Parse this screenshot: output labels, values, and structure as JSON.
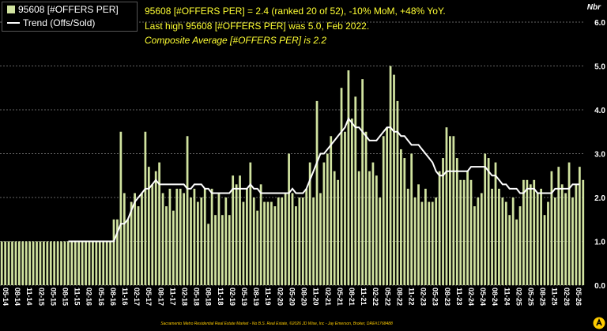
{
  "colors": {
    "bar": "#d1e3a0",
    "trend": "#ffffff",
    "grid": "#c8c8c8",
    "annotation": "#ffff33",
    "background": "#000000"
  },
  "legend": {
    "bars_label": "95608 [#OFFERS PER]",
    "trend_label": "Trend (Offs/Sold)"
  },
  "annotations": [
    "95608 [#OFFERS PER] = 2.4 (ranked 20 of 52), -10% MoM, +48% YoY.",
    "Last high 95608 [#OFFERS PER] was 5.0, Feb 2022.",
    "Composite Average [#OFFERS PER] is 2.2"
  ],
  "unit_label": "Nbr",
  "footer": "Sacramento Metro Residential Real Estate Market - No B.S. Real Estate, ©2026 JD Wise, Inc - Jay Emerson, Broker, DRE#1768488",
  "chart_data": {
    "type": "bar",
    "yaxis_side": "right",
    "ylim": [
      0,
      6
    ],
    "yticks": [
      "0.0",
      "1.0",
      "2.0",
      "3.0",
      "4.0",
      "5.0",
      "6.0"
    ],
    "x_tick_labels": [
      "05-14",
      "08-14",
      "11-14",
      "02-15",
      "05-15",
      "08-15",
      "11-15",
      "02-16",
      "05-16",
      "08-16",
      "11-16",
      "02-17",
      "05-17",
      "08-17",
      "11-17",
      "02-18",
      "05-18",
      "08-18",
      "11-18",
      "02-19",
      "05-19",
      "08-19",
      "11-19",
      "02-20",
      "05-20",
      "08-20",
      "11-20",
      "02-21",
      "05-21",
      "08-21",
      "11-21",
      "02-22",
      "05-22",
      "08-22",
      "11-22",
      "02-23",
      "05-23",
      "08-23",
      "11-23",
      "02-24",
      "05-24",
      "08-24",
      "11-24",
      "02-25",
      "05-25",
      "08-25",
      "11-25",
      "02-26",
      "05-26"
    ],
    "series": [
      {
        "name": "95608 [#OFFERS PER]",
        "type": "bar",
        "values": [
          1.0,
          1.0,
          1.0,
          1.0,
          1.0,
          1.0,
          1.0,
          1.0,
          1.0,
          1.0,
          1.0,
          1.0,
          1.0,
          1.0,
          1.0,
          1.0,
          1.0,
          1.0,
          1.0,
          1.0,
          1.0,
          1.0,
          1.0,
          1.0,
          1.0,
          1.0,
          1.0,
          1.0,
          1.0,
          1.0,
          1.0,
          1.0,
          1.5,
          1.5,
          3.5,
          2.1,
          1.5,
          1.9,
          2.1,
          1.8,
          2.1,
          3.5,
          2.7,
          2.3,
          2.6,
          2.8,
          2.1,
          1.8,
          2.2,
          1.7,
          2.2,
          2.2,
          2.1,
          3.4,
          2.0,
          2.2,
          1.9,
          2.0,
          2.2,
          1.4,
          2.2,
          1.6,
          2.1,
          1.6,
          2.0,
          1.6,
          2.5,
          2.3,
          2.5,
          1.9,
          2.2,
          2.8,
          2.0,
          1.7,
          2.3,
          1.9,
          1.9,
          1.9,
          1.8,
          2.0,
          2.0,
          2.1,
          3.0,
          2.1,
          1.8,
          2.0,
          2.0,
          2.2,
          2.8,
          2.0,
          4.2,
          2.1,
          2.8,
          3.0,
          3.4,
          2.6,
          2.4,
          4.5,
          3.5,
          4.9,
          3.8,
          4.3,
          2.6,
          4.7,
          3.5,
          2.6,
          2.8,
          2.5,
          2.0,
          3.4,
          3.6,
          5.0,
          4.8,
          4.2,
          3.1,
          2.9,
          2.2,
          3.0,
          2.0,
          2.3,
          1.9,
          2.2,
          1.9,
          1.9,
          2.0,
          2.6,
          2.9,
          3.6,
          3.4,
          3.4,
          2.9,
          2.4,
          2.4,
          2.6,
          2.4,
          1.8,
          2.0,
          2.1,
          3.0,
          2.9,
          2.2,
          2.8,
          2.2,
          2.0,
          1.9,
          1.6,
          2.0,
          1.5,
          1.8,
          2.4,
          2.4,
          2.3,
          2.4,
          2.1,
          2.2,
          1.6,
          1.9,
          2.6,
          2.0,
          2.7,
          2.3,
          2.1,
          2.8,
          2.0,
          2.3,
          2.7,
          2.4
        ]
      },
      {
        "name": "Trend (Offs/Sold)",
        "type": "line",
        "values": [
          null,
          null,
          null,
          null,
          null,
          null,
          null,
          null,
          null,
          null,
          null,
          null,
          null,
          null,
          null,
          null,
          null,
          null,
          null,
          1.0,
          1.0,
          1.0,
          1.0,
          1.0,
          1.0,
          1.0,
          1.0,
          1.0,
          1.0,
          1.0,
          1.0,
          1.0,
          1.0,
          1.2,
          1.4,
          1.4,
          1.5,
          1.7,
          1.9,
          2.0,
          2.1,
          2.2,
          2.2,
          2.3,
          2.4,
          2.3,
          2.3,
          2.3,
          2.3,
          2.3,
          2.3,
          2.3,
          2.3,
          2.2,
          2.2,
          2.3,
          2.3,
          2.3,
          2.2,
          2.2,
          2.1,
          2.1,
          2.1,
          2.1,
          2.1,
          2.1,
          2.2,
          2.2,
          2.2,
          2.2,
          2.2,
          2.3,
          2.2,
          2.2,
          2.1,
          2.1,
          2.1,
          2.1,
          2.1,
          2.1,
          2.1,
          2.1,
          2.1,
          2.2,
          2.1,
          2.1,
          2.1,
          2.2,
          2.4,
          2.6,
          2.8,
          3.0,
          3.0,
          3.1,
          3.2,
          3.3,
          3.4,
          3.5,
          3.6,
          3.8,
          3.7,
          3.6,
          3.6,
          3.5,
          3.4,
          3.3,
          3.3,
          3.3,
          3.4,
          3.5,
          3.6,
          3.6,
          3.5,
          3.5,
          3.4,
          3.4,
          3.3,
          3.2,
          3.2,
          3.2,
          3.1,
          3.0,
          2.9,
          2.8,
          2.6,
          2.5,
          2.5,
          2.6,
          2.6,
          2.6,
          2.6,
          2.6,
          2.6,
          2.6,
          2.7,
          2.7,
          2.7,
          2.7,
          2.7,
          2.6,
          2.5,
          2.5,
          2.4,
          2.3,
          2.3,
          2.2,
          2.2,
          2.2,
          2.1,
          2.1,
          2.2,
          2.2,
          2.2,
          2.1,
          2.1,
          2.1,
          2.1,
          2.1,
          2.2,
          2.2,
          2.2,
          2.2,
          2.2,
          2.3,
          2.3,
          2.3
        ]
      }
    ]
  }
}
